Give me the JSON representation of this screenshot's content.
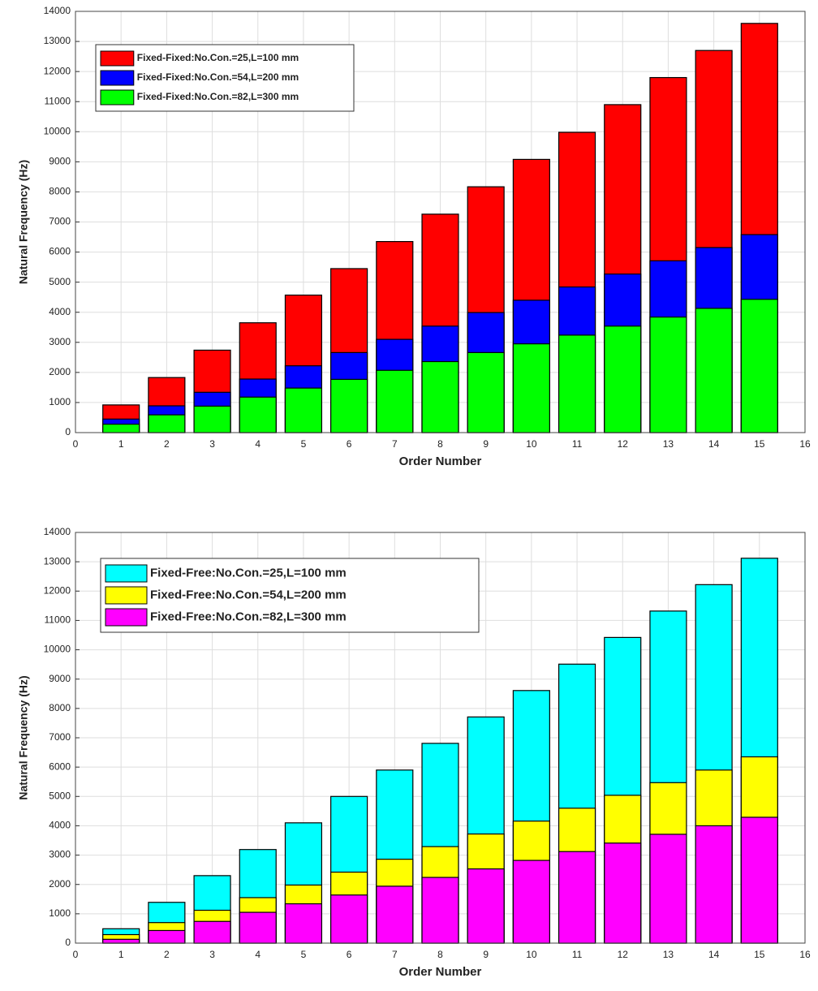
{
  "chart_data": [
    {
      "type": "bar",
      "x_label": "Order Number",
      "y_label": "Natural Frequency (Hz)",
      "x": [
        1,
        2,
        3,
        4,
        5,
        6,
        7,
        8,
        9,
        10,
        11,
        12,
        13,
        14,
        15
      ],
      "xlim": [
        0,
        16
      ],
      "xticks": [
        0,
        1,
        2,
        3,
        4,
        5,
        6,
        7,
        8,
        9,
        10,
        11,
        12,
        13,
        14,
        15,
        16
      ],
      "ylim": [
        0,
        14000
      ],
      "yticks": [
        0,
        1000,
        2000,
        3000,
        4000,
        5000,
        6000,
        7000,
        8000,
        9000,
        10000,
        11000,
        12000,
        13000,
        14000
      ],
      "grid": true,
      "legend": "upper left",
      "series": [
        {
          "name": "Fixed-Fixed:No.Con.=25,L=100 mm",
          "color": "#ff0000",
          "values": [
            920,
            1830,
            2740,
            3650,
            4570,
            5450,
            6350,
            7260,
            8170,
            9080,
            9980,
            10900,
            11800,
            12700,
            13600
          ]
        },
        {
          "name": "Fixed-Fixed:No.Con.=54,L=200 mm",
          "color": "#0000ff",
          "values": [
            450,
            890,
            1340,
            1780,
            2220,
            2660,
            3100,
            3540,
            3990,
            4400,
            4840,
            5270,
            5710,
            6150,
            6580
          ]
        },
        {
          "name": "Fixed-Fixed:No.Con.=82,L=300 mm",
          "color": "#00ff00",
          "values": [
            280,
            590,
            880,
            1180,
            1480,
            1770,
            2070,
            2360,
            2660,
            2950,
            3240,
            3540,
            3840,
            4130,
            4430
          ]
        }
      ]
    },
    {
      "type": "bar",
      "x_label": "Order Number",
      "y_label": "Natural Frequency (Hz)",
      "x": [
        1,
        2,
        3,
        4,
        5,
        6,
        7,
        8,
        9,
        10,
        11,
        12,
        13,
        14,
        15
      ],
      "xlim": [
        0,
        16
      ],
      "xticks": [
        0,
        1,
        2,
        3,
        4,
        5,
        6,
        7,
        8,
        9,
        10,
        11,
        12,
        13,
        14,
        15,
        16
      ],
      "ylim": [
        0,
        14000
      ],
      "yticks": [
        0,
        1000,
        2000,
        3000,
        4000,
        5000,
        6000,
        7000,
        8000,
        9000,
        10000,
        11000,
        12000,
        13000,
        14000
      ],
      "grid": true,
      "legend": "upper left",
      "series": [
        {
          "name": "Fixed-Free:No.Con.=25,L=100 mm",
          "color": "#00ffff",
          "values": [
            490,
            1390,
            2300,
            3190,
            4100,
            5000,
            5900,
            6810,
            7710,
            8610,
            9510,
            10420,
            11320,
            12220,
            13120
          ]
        },
        {
          "name": "Fixed-Free:No.Con.=54,L=200 mm",
          "color": "#ffff00",
          "values": [
            290,
            700,
            1120,
            1550,
            1980,
            2420,
            2860,
            3290,
            3720,
            4160,
            4600,
            5040,
            5470,
            5900,
            6350
          ]
        },
        {
          "name": "Fixed-Free:No.Con.=82,L=300 mm",
          "color": "#ff00ff",
          "values": [
            130,
            430,
            740,
            1050,
            1340,
            1640,
            1940,
            2240,
            2530,
            2820,
            3120,
            3410,
            3710,
            4000,
            4290
          ]
        }
      ]
    }
  ]
}
